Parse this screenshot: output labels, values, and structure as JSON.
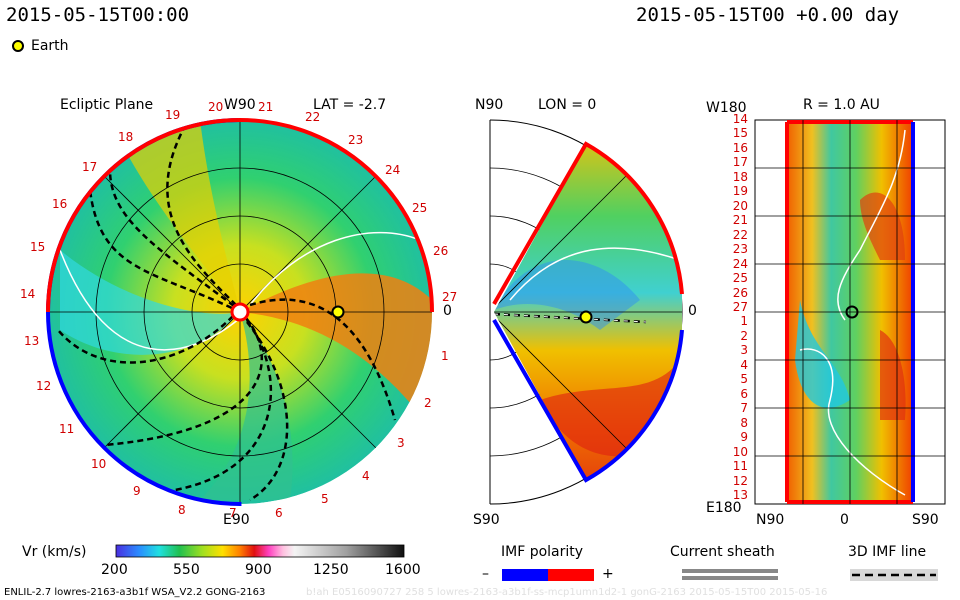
{
  "header": {
    "left_time": "2015-05-15T00:00",
    "right_time": "2015-05-15T00 +0.00 day",
    "legend_earth": "Earth"
  },
  "ecliptic": {
    "title": "Ecliptic Plane",
    "top_label": "W90",
    "bottom_label": "E90",
    "right_label": "0",
    "lat_label": "LAT = -2.7",
    "longitudes_red": [
      "19",
      "20",
      "21",
      "22",
      "23",
      "24",
      "25",
      "26",
      "27",
      "18",
      "17",
      "16",
      "15",
      "14",
      "13",
      "12",
      "11",
      "10",
      "9",
      "8"
    ],
    "longitudes_black": [
      "1",
      "2",
      "3",
      "4",
      "5",
      "6",
      "7"
    ]
  },
  "meridional": {
    "top_label": "N90",
    "bottom_label": "S90",
    "lon_label": "LON = 0",
    "right_label": "0"
  },
  "radial": {
    "top_label": "W180",
    "bottom_label": "E180",
    "r_label": "R = 1.0 AU",
    "x_left": "N90",
    "x_mid": "0",
    "x_right": "S90",
    "ticks": [
      "14",
      "15",
      "16",
      "17",
      "18",
      "19",
      "20",
      "21",
      "22",
      "23",
      "24",
      "25",
      "26",
      "27",
      "1",
      "2",
      "3",
      "4",
      "5",
      "6",
      "7",
      "8",
      "9",
      "10",
      "11",
      "12",
      "13"
    ]
  },
  "colorbar": {
    "label": "Vr (km/s)",
    "ticks": [
      "200",
      "550",
      "900",
      "1250",
      "1600"
    ]
  },
  "imf": {
    "label": "IMF polarity",
    "minus": "–",
    "plus": "+",
    "neg_color": "#0000ff",
    "pos_color": "#ff0000"
  },
  "current_sheath": {
    "label": "Current sheath"
  },
  "imf_line": {
    "label": "3D IMF line"
  },
  "footer": {
    "left": "ENLIL-2.7 lowres-2163-a3b1f WSA_V2.2 GONG-2163",
    "right": "b!ah E0516090727 258 5 lowres-2163-a3b1f-ss-mcp1umn1d2-1 gonG-2163 2015-05-15T00  2015-05-16"
  }
}
